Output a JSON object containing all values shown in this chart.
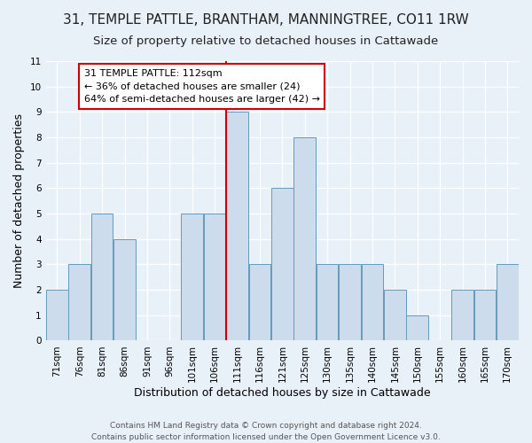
{
  "title": "31, TEMPLE PATTLE, BRANTHAM, MANNINGTREE, CO11 1RW",
  "subtitle": "Size of property relative to detached houses in Cattawade",
  "xlabel": "Distribution of detached houses by size in Cattawade",
  "ylabel": "Number of detached properties",
  "bin_labels": [
    "71sqm",
    "76sqm",
    "81sqm",
    "86sqm",
    "91sqm",
    "96sqm",
    "101sqm",
    "106sqm",
    "111sqm",
    "116sqm",
    "121sqm",
    "125sqm",
    "130sqm",
    "135sqm",
    "140sqm",
    "145sqm",
    "150sqm",
    "155sqm",
    "160sqm",
    "165sqm",
    "170sqm"
  ],
  "bar_heights": [
    2,
    3,
    5,
    4,
    0,
    0,
    5,
    5,
    9,
    3,
    6,
    8,
    3,
    3,
    3,
    2,
    1,
    0,
    2,
    2,
    3
  ],
  "bar_color": "#ccdcec",
  "bar_edgecolor": "#6699bb",
  "property_line_idx": 8,
  "property_line_color": "#cc0000",
  "annotation_title": "31 TEMPLE PATTLE: 112sqm",
  "annotation_line1": "← 36% of detached houses are smaller (24)",
  "annotation_line2": "64% of semi-detached houses are larger (42) →",
  "annotation_box_edgecolor": "#cc0000",
  "annotation_box_facecolor": "#ffffff",
  "ylim": [
    0,
    11
  ],
  "yticks": [
    0,
    1,
    2,
    3,
    4,
    5,
    6,
    7,
    8,
    9,
    10,
    11
  ],
  "footer_line1": "Contains HM Land Registry data © Crown copyright and database right 2024.",
  "footer_line2": "Contains public sector information licensed under the Open Government Licence v3.0.",
  "background_color": "#e8f0f8",
  "grid_color": "#ffffff",
  "title_fontsize": 11,
  "subtitle_fontsize": 9.5,
  "axis_label_fontsize": 9,
  "tick_fontsize": 7.5,
  "annotation_fontsize": 8,
  "footer_fontsize": 6.5
}
